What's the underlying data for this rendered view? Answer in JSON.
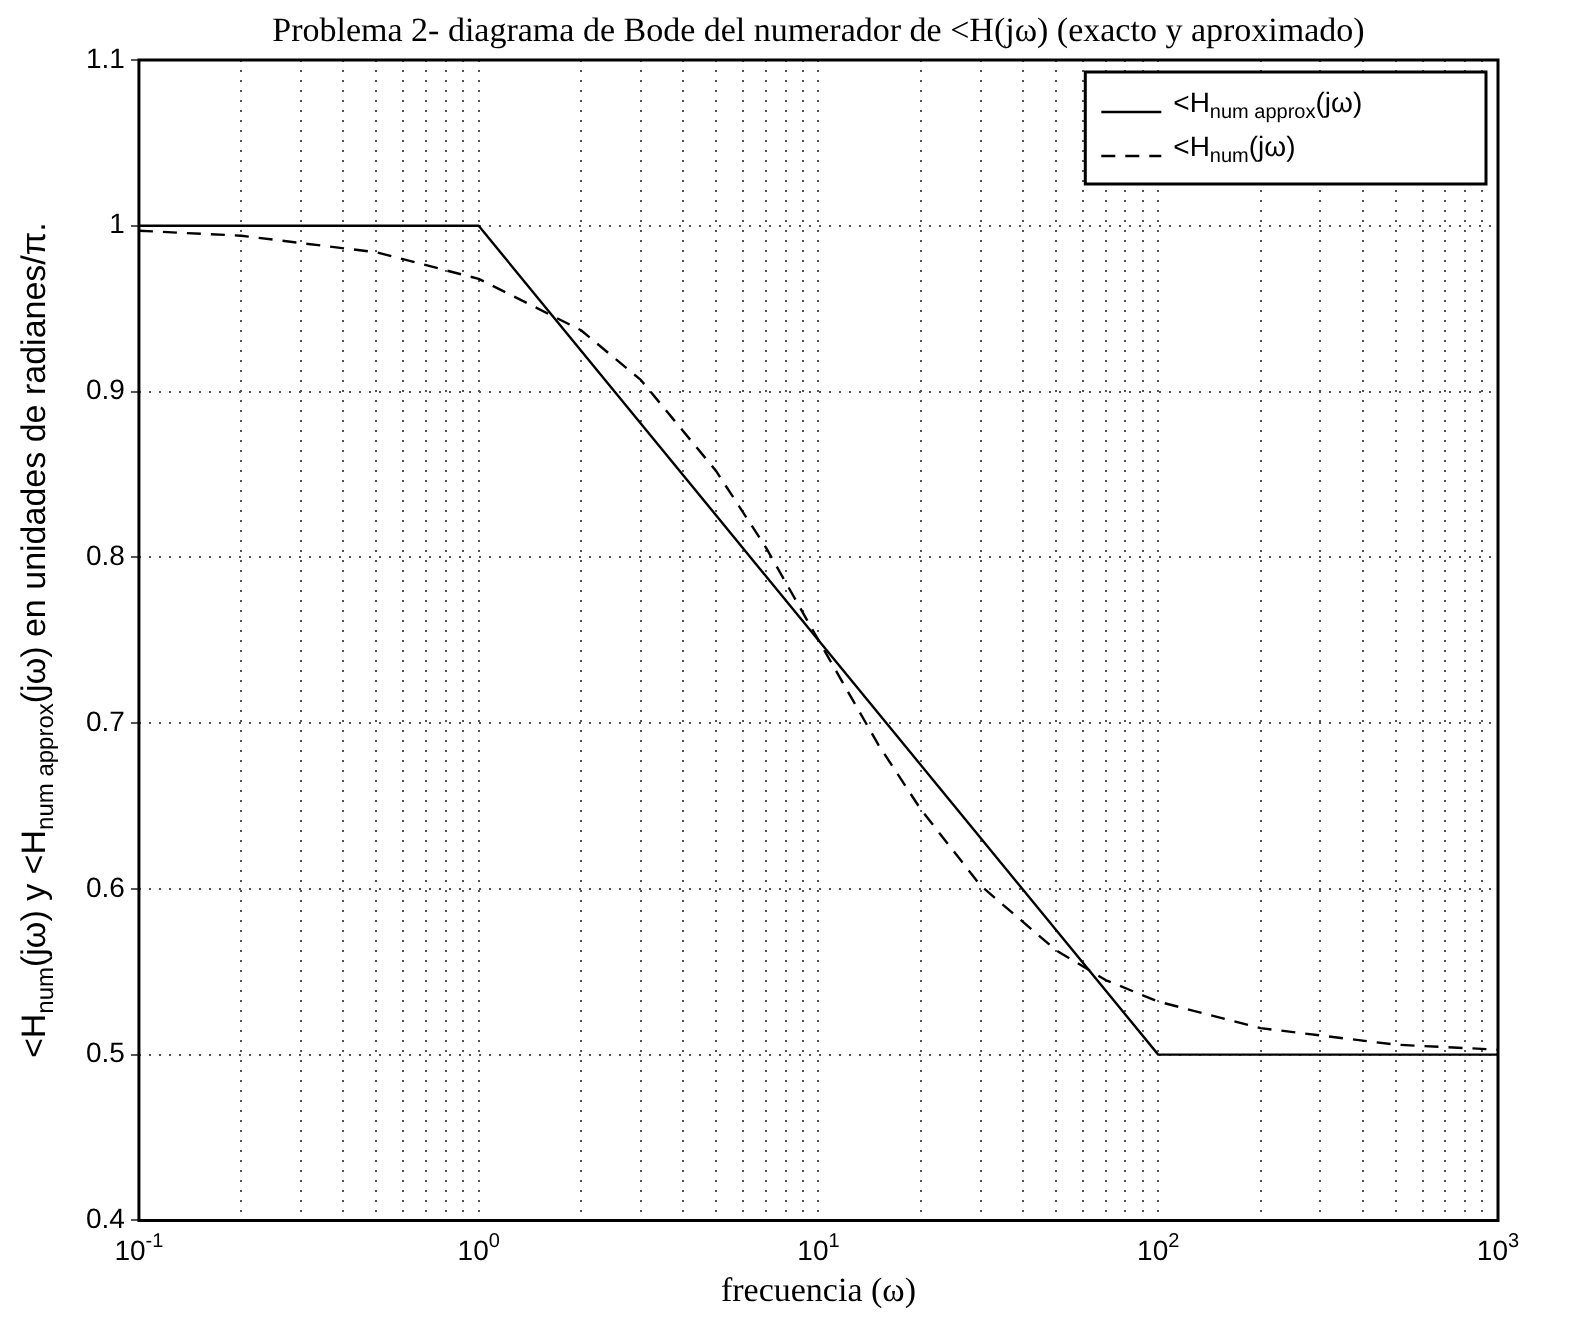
{
  "chart_data": {
    "type": "line",
    "title": "Problema 2- diagrama de Bode del numerador de <H(jω) (exacto y aproximado)",
    "xlabel": "frecuencia (ω)",
    "ylabel": "<H$_{num}$(jω) y <H$_{num approx}$(jω) en unidades de radianes/π.",
    "log": "x",
    "grid": true,
    "legend": "top right",
    "xlim": [
      0.1,
      1000
    ],
    "ylim": [
      0.4,
      1.1
    ],
    "xticks": [
      {
        "value": 0.1,
        "label": "10$^{-1}$"
      },
      {
        "value": 0.2,
        "label": null
      },
      {
        "value": 0.3,
        "label": null
      },
      {
        "value": 0.4,
        "label": null
      },
      {
        "value": 0.5,
        "label": null
      },
      {
        "value": 0.6,
        "label": null
      },
      {
        "value": 0.7,
        "label": null
      },
      {
        "value": 0.8,
        "label": null
      },
      {
        "value": 0.9,
        "label": null
      },
      {
        "value": 1,
        "label": "10$^{0}$"
      },
      {
        "value": 2,
        "label": null
      },
      {
        "value": 3,
        "label": null
      },
      {
        "value": 4,
        "label": null
      },
      {
        "value": 5,
        "label": null
      },
      {
        "value": 6,
        "label": null
      },
      {
        "value": 7,
        "label": null
      },
      {
        "value": 8,
        "label": null
      },
      {
        "value": 9,
        "label": null
      },
      {
        "value": 10,
        "label": "10$^{1}$"
      },
      {
        "value": 20,
        "label": null
      },
      {
        "value": 30,
        "label": null
      },
      {
        "value": 40,
        "label": null
      },
      {
        "value": 50,
        "label": null
      },
      {
        "value": 60,
        "label": null
      },
      {
        "value": 70,
        "label": null
      },
      {
        "value": 80,
        "label": null
      },
      {
        "value": 90,
        "label": null
      },
      {
        "value": 100,
        "label": "10$^{2}$"
      },
      {
        "value": 200,
        "label": null
      },
      {
        "value": 300,
        "label": null
      },
      {
        "value": 400,
        "label": null
      },
      {
        "value": 500,
        "label": null
      },
      {
        "value": 600,
        "label": null
      },
      {
        "value": 700,
        "label": null
      },
      {
        "value": 800,
        "label": null
      },
      {
        "value": 900,
        "label": null
      },
      {
        "value": 1000,
        "label": "10$^{3}$"
      }
    ],
    "yticks": [
      0.4,
      0.5,
      0.6,
      0.7,
      0.8,
      0.9,
      1,
      1.1
    ],
    "series": [
      {
        "name": "<H$_{num approx}$(jω)",
        "color": "#000000",
        "line_style": "solid",
        "x": [
          0.1,
          1,
          100,
          1000
        ],
        "values": [
          1,
          1,
          0.5,
          0.5
        ]
      },
      {
        "name": "<H$_{num}$(jω)",
        "color": "#000000",
        "line_style": "dashed",
        "x": [
          0.1,
          0.2,
          0.5,
          1,
          2,
          3,
          5,
          7,
          10,
          15,
          20,
          30,
          50,
          70,
          100,
          200,
          500,
          1000
        ],
        "values": [
          0.997,
          0.994,
          0.984,
          0.968,
          0.937,
          0.907,
          0.852,
          0.806,
          0.75,
          0.687,
          0.648,
          0.602,
          0.563,
          0.545,
          0.532,
          0.516,
          0.506,
          0.503
        ]
      }
    ]
  }
}
